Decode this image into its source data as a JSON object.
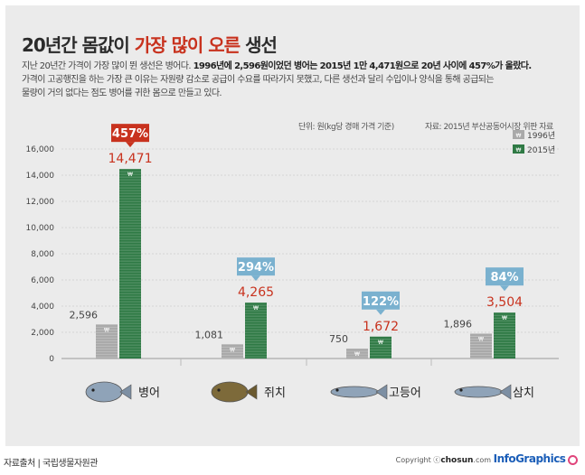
{
  "header": {
    "title_part1": "20년간 몸값이",
    "title_part2": "가장 많이 오른",
    "title_part3": "생선"
  },
  "description": {
    "line1_normal": "지난 20년간 가격이 가장 많이 뛴 생선은 병어다.",
    "line1_bold": "1996년에 2,596원이었던 병어는 2015년 1만 4,471원으로 20년 사이에 457%가 올랐다.",
    "line2": "가격이 고공행진을 하는 가장 큰 이유는 자원량 감소로 공급이 수요를 따라가지 못했고, 다른 생선과 달리 수입이나 양식을 통해 공급되는",
    "line3": "물량이 거의 없다는 점도 병어를 귀한 몸으로 만들고 있다."
  },
  "meta": {
    "unit": "단위: 원(kg당 경매 가격 기준)",
    "source": "자료: 2015년 부산공동어시장 위판 자료"
  },
  "footer": {
    "source": "자료출처 | 국립생물자원관",
    "copyright_prefix": "Copyright ⓒ",
    "copyright_brand": "chosun",
    "copyright_suffix": ".com",
    "infographics": "InfoGraphics"
  },
  "colors": {
    "bar_1996": "#a9a9a9",
    "bar_2015": "#2f7a45",
    "accent_red": "#c8321e",
    "accent_blue": "#7ab1cf"
  },
  "chart_data": {
    "type": "bar",
    "categories": [
      "병어",
      "쥐치",
      "고등어",
      "삼치"
    ],
    "series": [
      {
        "name": "1996년",
        "values": [
          2596,
          1081,
          750,
          1896
        ]
      },
      {
        "name": "2015년",
        "values": [
          14471,
          4265,
          1672,
          3504
        ]
      }
    ],
    "value_labels": {
      "1996년": [
        "2,596",
        "1,081",
        "750",
        "1,896"
      ],
      "2015년": [
        "14,471",
        "4,265",
        "1,672",
        "3,504"
      ]
    },
    "increase_labels": [
      "457%",
      "294%",
      "122%",
      "84%"
    ],
    "increase_highlight": [
      true,
      false,
      false,
      false
    ],
    "y_ticks": [
      0,
      2000,
      4000,
      6000,
      8000,
      10000,
      12000,
      14000,
      16000
    ],
    "y_tick_labels": [
      "0",
      "2,000",
      "4,000",
      "6,000",
      "8,000",
      "10,000",
      "12,000",
      "14,000",
      "16,000"
    ],
    "ylim": [
      0,
      16000
    ],
    "legend": [
      "1996년",
      "2015년"
    ],
    "legend_placement": "top-right",
    "bar_marker": "₩"
  }
}
